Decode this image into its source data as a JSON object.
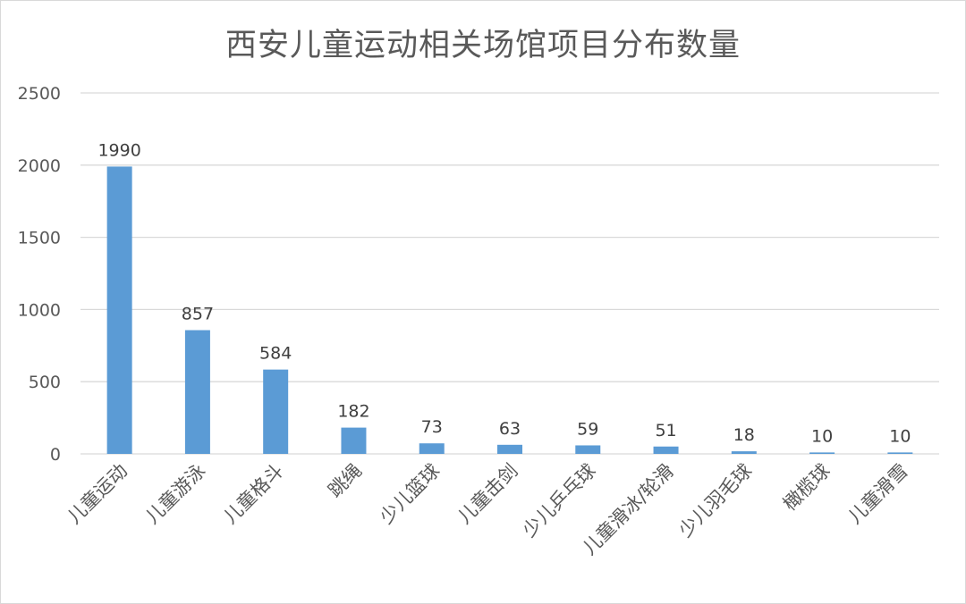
{
  "chart_data": {
    "type": "bar",
    "title": "西安儿童运动相关场馆项目分布数量",
    "categories": [
      "儿童运动",
      "儿童游泳",
      "儿童格斗",
      "跳绳",
      "少儿篮球",
      "儿童击剑",
      "少儿乒乓球",
      "儿童滑冰/轮滑",
      "少儿羽毛球",
      "橄榄球",
      "儿童滑雪"
    ],
    "values": [
      1990,
      857,
      584,
      182,
      73,
      63,
      59,
      51,
      18,
      10,
      10
    ],
    "yticks": [
      0,
      500,
      1000,
      1500,
      2000,
      2500
    ],
    "ylim": [
      0,
      2500
    ],
    "xlabel": "",
    "ylabel": "",
    "grid": true,
    "bar_color": "#5b9bd5",
    "gridline_color": "#d9d9d9",
    "text_color": "#595959"
  }
}
